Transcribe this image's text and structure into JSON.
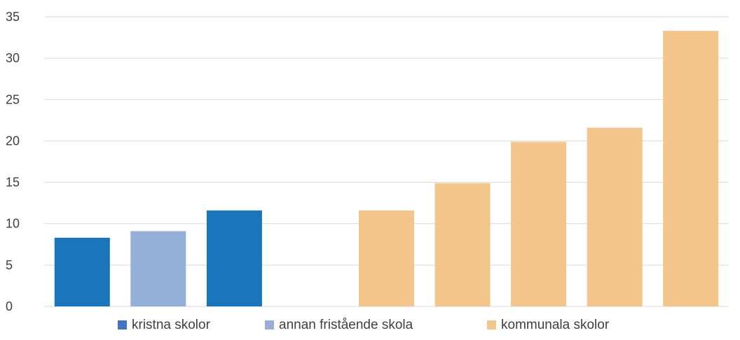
{
  "chart_data": {
    "type": "bar",
    "categories": [
      "",
      "",
      "",
      "",
      "",
      "",
      "",
      "",
      ""
    ],
    "values": [
      8.3,
      9.1,
      11.6,
      null,
      11.6,
      14.9,
      19.9,
      21.6,
      33.3
    ],
    "bar_series": [
      0,
      1,
      0,
      null,
      2,
      2,
      2,
      2,
      2
    ],
    "series": [
      {
        "name": "kristna skolor",
        "color": "#1a75bb",
        "legend_color": "#4472c4"
      },
      {
        "name": "annan fristående skola",
        "color": "#95b0d8",
        "legend_color": "#95b0d8"
      },
      {
        "name": "kommunala skolor",
        "color": "#f4c68c",
        "legend_color": "#f4c68c"
      }
    ],
    "title": "",
    "xlabel": "",
    "ylabel": "",
    "ylim": [
      0,
      35
    ],
    "yticks": [
      0,
      5,
      10,
      15,
      20,
      25,
      30,
      35
    ],
    "grid": true,
    "legend_position": "bottom"
  }
}
